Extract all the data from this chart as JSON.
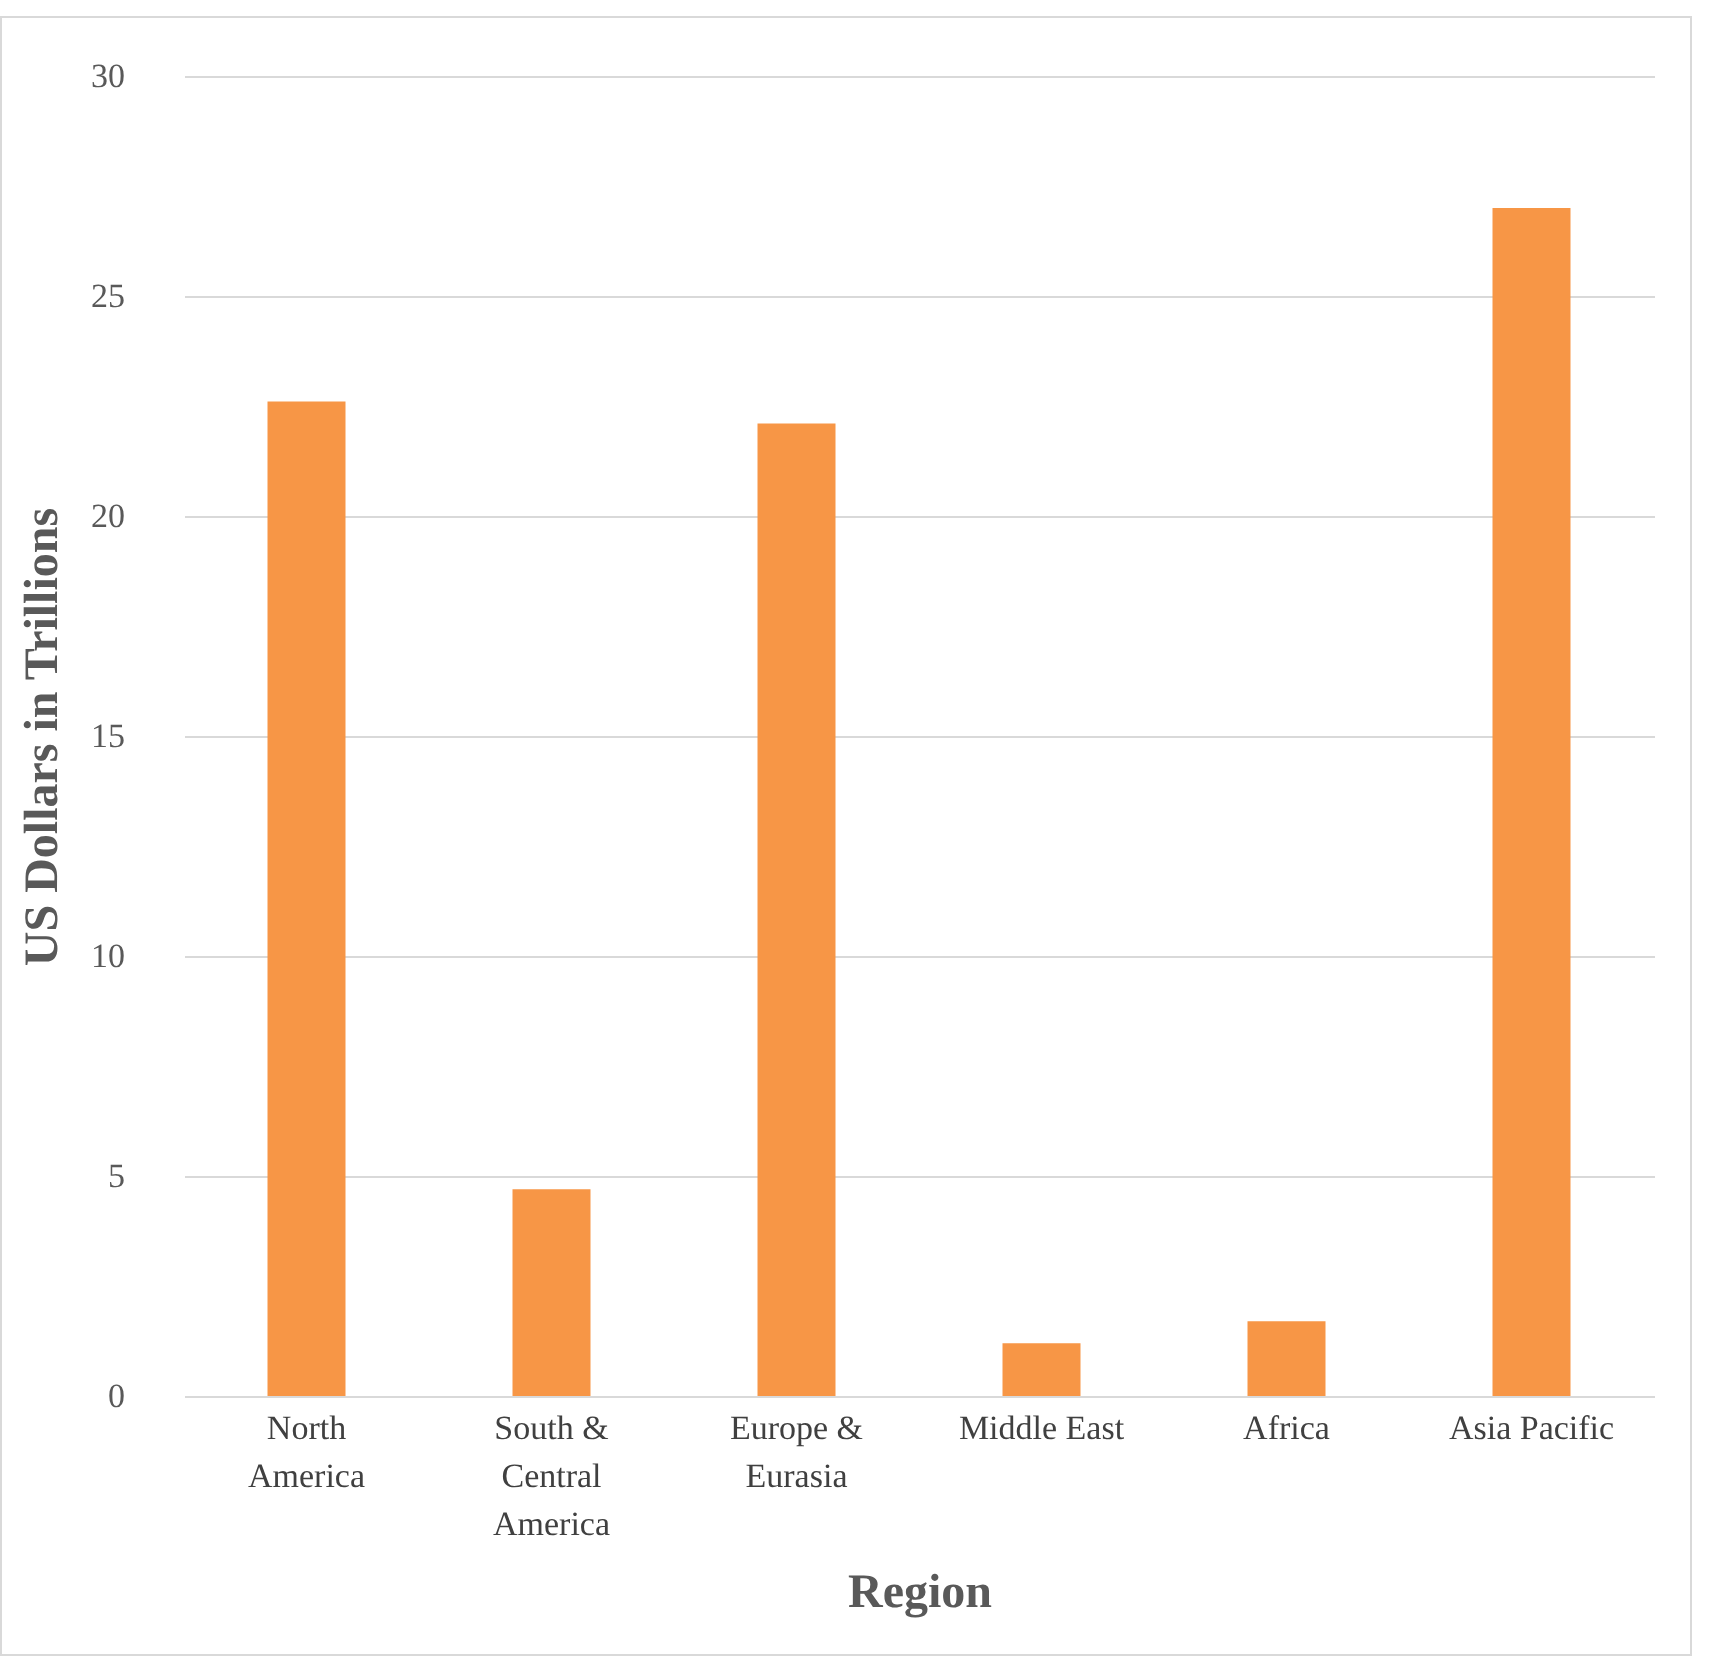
{
  "chart_data": {
    "type": "bar",
    "xlabel": "Region",
    "ylabel": "US Dollars in Trillions",
    "categories": [
      "North America",
      "South & Central America",
      "Europe & Eurasia",
      "Middle East",
      "Africa",
      "Asia Pacific"
    ],
    "values": [
      22.6,
      4.7,
      22.1,
      1.2,
      1.7,
      27.0
    ],
    "color": "#f79646",
    "ylim": [
      0,
      30
    ],
    "yticks": [
      0,
      5,
      10,
      15,
      20,
      25,
      30
    ],
    "grid": "y"
  }
}
